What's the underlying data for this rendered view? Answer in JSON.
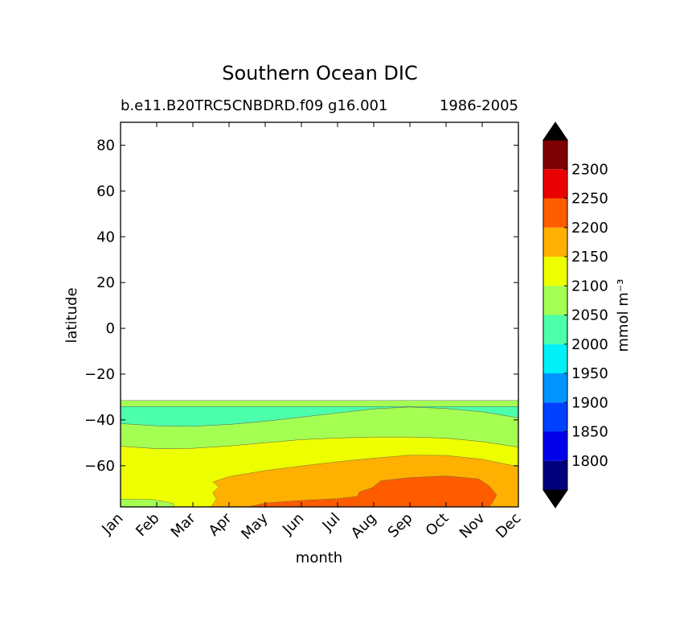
{
  "chart_data": {
    "type": "filled-contour",
    "title": "Southern Ocean DIC",
    "subtitle_left": "b.e11.B20TRC5CNBDRD.f09 g16.001",
    "subtitle_right": "1986-2005",
    "xlabel": "month",
    "ylabel": "latitude",
    "x_categories": [
      "Jan",
      "Feb",
      "Mar",
      "Apr",
      "May",
      "Jun",
      "Jul",
      "Aug",
      "Sep",
      "Oct",
      "Nov",
      "Dec"
    ],
    "ylim": [
      -78,
      90
    ],
    "yticks": [
      80,
      60,
      40,
      20,
      0,
      -20,
      -40,
      -60
    ],
    "ytick_labels": [
      "80",
      "60",
      "40",
      "20",
      "0",
      "−20",
      "−40",
      "−60"
    ],
    "data_northern_limit": -31.5,
    "colorbar": {
      "label": "mmol m⁻³",
      "levels": [
        1750,
        1800,
        1850,
        1900,
        1950,
        2000,
        2050,
        2100,
        2150,
        2200,
        2250,
        2300,
        2350
      ],
      "tick_values": [
        1800,
        1850,
        1900,
        1950,
        2000,
        2050,
        2100,
        2150,
        2200,
        2250,
        2300
      ],
      "tick_labels": [
        "1800",
        "1850",
        "1900",
        "1950",
        "2000",
        "2050",
        "2100",
        "2150",
        "2200",
        "2250",
        "2300"
      ],
      "colors": [
        "#00007f",
        "#0000ea",
        "#0040ff",
        "#0094ff",
        "#00f0f7",
        "#4cffaa",
        "#a4ff52",
        "#eeff00",
        "#ffb000",
        "#ff5c00",
        "#ea0000",
        "#7f0000"
      ],
      "under_color": "#000000",
      "over_color": "#000000",
      "extend": "both"
    },
    "contour_bands": [
      {
        "name": "band-2050-2100-north",
        "value_range": "2050-2100",
        "color": "#a4ff52",
        "upper": [
          [
            0,
            -31.5
          ],
          [
            11,
            -31.5
          ]
        ],
        "lower": [
          [
            0,
            -34.2
          ],
          [
            11,
            -34.2
          ]
        ]
      },
      {
        "name": "band-2000-2050",
        "value_range": "2000-2050",
        "color": "#4cffaa",
        "upper": [
          [
            0,
            -34.2
          ],
          [
            11,
            -34.2
          ]
        ],
        "lower": [
          [
            0,
            -41.6
          ],
          [
            1,
            -42.6
          ],
          [
            2,
            -42.8
          ],
          [
            3,
            -42.0
          ],
          [
            4,
            -40.6
          ],
          [
            5,
            -38.8
          ],
          [
            6,
            -37.0
          ],
          [
            7,
            -35.2
          ],
          [
            8,
            -34.4
          ],
          [
            9,
            -35.0
          ],
          [
            10,
            -36.5
          ],
          [
            11,
            -39.1
          ]
        ]
      },
      {
        "name": "band-2050-2100-south",
        "value_range": "2050-2100",
        "color": "#a4ff52",
        "upper": [
          [
            0,
            -41.6
          ],
          [
            1,
            -42.6
          ],
          [
            2,
            -42.8
          ],
          [
            3,
            -42.0
          ],
          [
            4,
            -40.6
          ],
          [
            5,
            -38.8
          ],
          [
            6,
            -37.0
          ],
          [
            7,
            -35.2
          ],
          [
            8,
            -34.4
          ],
          [
            9,
            -35.0
          ],
          [
            10,
            -36.5
          ],
          [
            11,
            -39.1
          ]
        ],
        "lower": [
          [
            0,
            -51.5
          ],
          [
            1,
            -52.6
          ],
          [
            2,
            -52.4
          ],
          [
            3,
            -51.4
          ],
          [
            4,
            -50.0
          ],
          [
            5,
            -48.6
          ],
          [
            6,
            -47.9
          ],
          [
            7,
            -47.5
          ],
          [
            8,
            -47.5
          ],
          [
            9,
            -48.0
          ],
          [
            10,
            -49.5
          ],
          [
            11,
            -51.9
          ]
        ]
      },
      {
        "name": "band-2100-2150",
        "value_range": "2100-2150",
        "color": "#eeff00",
        "upper": [
          [
            0,
            -51.5
          ],
          [
            1,
            -52.6
          ],
          [
            2,
            -52.4
          ],
          [
            3,
            -51.4
          ],
          [
            4,
            -50.0
          ],
          [
            5,
            -48.6
          ],
          [
            6,
            -47.9
          ],
          [
            7,
            -47.5
          ],
          [
            8,
            -47.5
          ],
          [
            9,
            -48.0
          ],
          [
            10,
            -49.5
          ],
          [
            11,
            -51.9
          ]
        ],
        "lower": [
          [
            0,
            -78
          ],
          [
            11,
            -78
          ]
        ]
      },
      {
        "name": "band-2050-2100-corner",
        "value_range": "2050-2100",
        "color": "#a4ff52",
        "polygon": [
          [
            0,
            -74.6
          ],
          [
            0.9,
            -74.8
          ],
          [
            1.45,
            -76.5
          ],
          [
            1.5,
            -78
          ],
          [
            0,
            -78
          ]
        ]
      },
      {
        "name": "band-2150-2200",
        "value_range": "2150-2200",
        "color": "#ffb000",
        "polygon": [
          [
            2.5,
            -78
          ],
          [
            2.65,
            -74.6
          ],
          [
            2.55,
            -71.8
          ],
          [
            2.72,
            -69.2
          ],
          [
            2.55,
            -67.1
          ],
          [
            3.0,
            -64.8
          ],
          [
            4.0,
            -62.1
          ],
          [
            5.0,
            -60.1
          ],
          [
            6.0,
            -58.3
          ],
          [
            7.0,
            -56.7
          ],
          [
            8.0,
            -55.4
          ],
          [
            9.0,
            -55.5
          ],
          [
            10.0,
            -57.2
          ],
          [
            10.8,
            -59.8
          ],
          [
            11,
            -60.5
          ],
          [
            11,
            -78
          ]
        ]
      },
      {
        "name": "band-2200-2250",
        "value_range": "2200-2250",
        "color": "#ff5c00",
        "polygon": [
          [
            3.55,
            -78
          ],
          [
            4.0,
            -76.3
          ],
          [
            5.0,
            -75.2
          ],
          [
            6.0,
            -74.4
          ],
          [
            6.55,
            -73.4
          ],
          [
            6.6,
            -71.5
          ],
          [
            6.95,
            -69.7
          ],
          [
            7.2,
            -66.6
          ],
          [
            8.0,
            -65.2
          ],
          [
            9.0,
            -64.5
          ],
          [
            9.9,
            -65.8
          ],
          [
            10.2,
            -68.9
          ],
          [
            10.4,
            -72.9
          ],
          [
            10.25,
            -76.8
          ],
          [
            10.2,
            -78
          ]
        ]
      }
    ]
  }
}
